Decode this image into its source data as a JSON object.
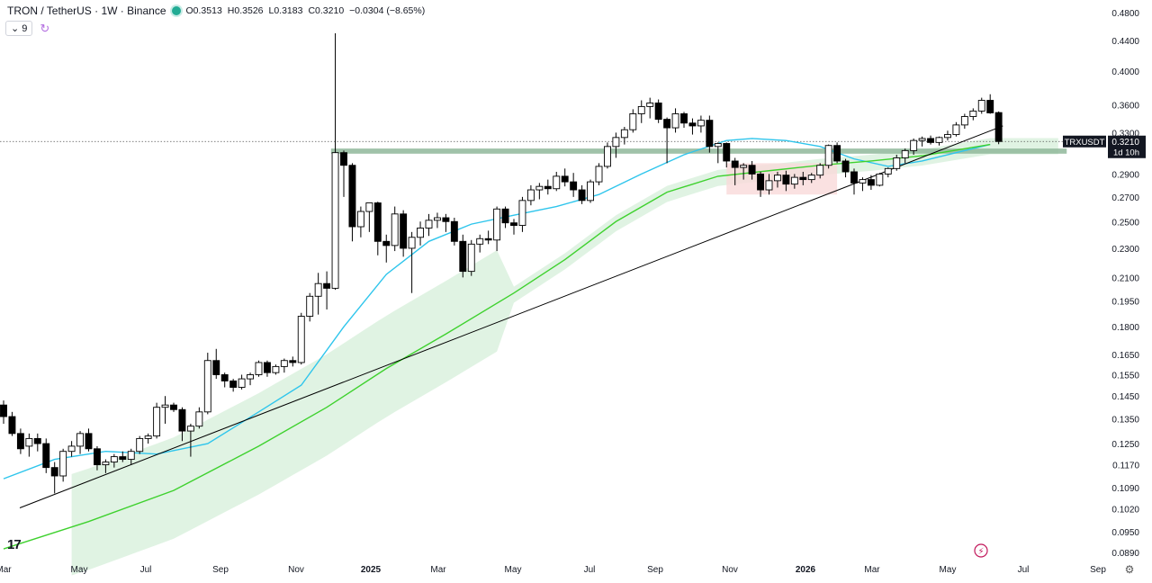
{
  "header": {
    "symbol": "TRON / TetherUS · 1W · Binance",
    "open": "O0.3513",
    "high": "H0.3526",
    "low": "L0.3183",
    "close": "C0.3210",
    "change": "−0.0304 (−8.65%)",
    "indicator_count": "9"
  },
  "price_label": {
    "ticker": "TRXUSDT",
    "price": "0.3210",
    "countdown": "1d 10h"
  },
  "logo_text": "17",
  "colors": {
    "up_fill": "#ffffff",
    "down_fill": "#000000",
    "ema_short": "#2ec5ec",
    "ema_long": "#3ed12e",
    "cloud_green": "#d6efd9",
    "cloud_red": "#f9dada",
    "zone": "#8fb79a",
    "trendline": "#000000"
  },
  "chart_data": {
    "type": "candlestick",
    "y_scale": "log",
    "y_ticks": [
      "0.4800",
      "0.4400",
      "0.4000",
      "0.3600",
      "0.3300",
      "0.2900",
      "0.2700",
      "0.2500",
      "0.2300",
      "0.2100",
      "0.1950",
      "0.1800",
      "0.1650",
      "0.1550",
      "0.1450",
      "0.1350",
      "0.1250",
      "0.1170",
      "0.1090",
      "0.1020",
      "0.0950",
      "0.0890"
    ],
    "x_ticks": [
      "Mar",
      "May",
      "Jul",
      "Sep",
      "Nov",
      "2025",
      "Mar",
      "May",
      "Jul",
      "Sep",
      "Nov",
      "2026",
      "Mar",
      "May",
      "Jul",
      "Sep"
    ],
    "x_ticks_bold": [
      "2025",
      "2026"
    ],
    "candles": [
      [
        0.141,
        0.143,
        0.133,
        0.136
      ],
      [
        0.136,
        0.138,
        0.128,
        0.129
      ],
      [
        0.129,
        0.131,
        0.121,
        0.123
      ],
      [
        0.124,
        0.129,
        0.12,
        0.127
      ],
      [
        0.127,
        0.129,
        0.122,
        0.125
      ],
      [
        0.125,
        0.127,
        0.114,
        0.116
      ],
      [
        0.116,
        0.118,
        0.107,
        0.113
      ],
      [
        0.113,
        0.123,
        0.111,
        0.122
      ],
      [
        0.122,
        0.126,
        0.12,
        0.124
      ],
      [
        0.124,
        0.13,
        0.121,
        0.129
      ],
      [
        0.129,
        0.131,
        0.122,
        0.123
      ],
      [
        0.123,
        0.124,
        0.115,
        0.117
      ],
      [
        0.117,
        0.119,
        0.114,
        0.118
      ],
      [
        0.118,
        0.121,
        0.116,
        0.12
      ],
      [
        0.12,
        0.122,
        0.118,
        0.119
      ],
      [
        0.119,
        0.123,
        0.117,
        0.122
      ],
      [
        0.122,
        0.128,
        0.121,
        0.127
      ],
      [
        0.127,
        0.129,
        0.125,
        0.128
      ],
      [
        0.128,
        0.142,
        0.127,
        0.14
      ],
      [
        0.14,
        0.145,
        0.133,
        0.141
      ],
      [
        0.141,
        0.142,
        0.138,
        0.139
      ],
      [
        0.139,
        0.14,
        0.126,
        0.13
      ],
      [
        0.13,
        0.133,
        0.12,
        0.132
      ],
      [
        0.132,
        0.14,
        0.131,
        0.138
      ],
      [
        0.138,
        0.166,
        0.137,
        0.162
      ],
      [
        0.162,
        0.168,
        0.153,
        0.155
      ],
      [
        0.155,
        0.156,
        0.149,
        0.152
      ],
      [
        0.152,
        0.153,
        0.147,
        0.149
      ],
      [
        0.149,
        0.155,
        0.148,
        0.153
      ],
      [
        0.153,
        0.156,
        0.15,
        0.155
      ],
      [
        0.155,
        0.162,
        0.154,
        0.161
      ],
      [
        0.161,
        0.162,
        0.154,
        0.156
      ],
      [
        0.156,
        0.16,
        0.155,
        0.159
      ],
      [
        0.159,
        0.163,
        0.156,
        0.162
      ],
      [
        0.162,
        0.164,
        0.159,
        0.161
      ],
      [
        0.161,
        0.188,
        0.16,
        0.186
      ],
      [
        0.186,
        0.2,
        0.183,
        0.198
      ],
      [
        0.198,
        0.213,
        0.187,
        0.206
      ],
      [
        0.206,
        0.214,
        0.19,
        0.203
      ],
      [
        0.203,
        0.45,
        0.202,
        0.31
      ],
      [
        0.31,
        0.312,
        0.27,
        0.298
      ],
      [
        0.298,
        0.3,
        0.235,
        0.246
      ],
      [
        0.246,
        0.262,
        0.238,
        0.258
      ],
      [
        0.258,
        0.263,
        0.242,
        0.265
      ],
      [
        0.265,
        0.266,
        0.225,
        0.235
      ],
      [
        0.235,
        0.24,
        0.22,
        0.232
      ],
      [
        0.232,
        0.262,
        0.228,
        0.256
      ],
      [
        0.256,
        0.259,
        0.224,
        0.23
      ],
      [
        0.23,
        0.242,
        0.2,
        0.238
      ],
      [
        0.238,
        0.25,
        0.232,
        0.245
      ],
      [
        0.245,
        0.256,
        0.239,
        0.251
      ],
      [
        0.251,
        0.257,
        0.245,
        0.253
      ],
      [
        0.253,
        0.256,
        0.242,
        0.25
      ],
      [
        0.25,
        0.253,
        0.232,
        0.235
      ],
      [
        0.235,
        0.24,
        0.21,
        0.214
      ],
      [
        0.214,
        0.236,
        0.211,
        0.233
      ],
      [
        0.233,
        0.24,
        0.227,
        0.237
      ],
      [
        0.237,
        0.243,
        0.233,
        0.236
      ],
      [
        0.236,
        0.262,
        0.228,
        0.26
      ],
      [
        0.26,
        0.262,
        0.245,
        0.249
      ],
      [
        0.249,
        0.252,
        0.24,
        0.247
      ],
      [
        0.247,
        0.27,
        0.242,
        0.267
      ],
      [
        0.267,
        0.28,
        0.263,
        0.276
      ],
      [
        0.276,
        0.282,
        0.268,
        0.279
      ],
      [
        0.279,
        0.285,
        0.272,
        0.277
      ],
      [
        0.277,
        0.292,
        0.275,
        0.288
      ],
      [
        0.288,
        0.295,
        0.279,
        0.283
      ],
      [
        0.283,
        0.291,
        0.27,
        0.276
      ],
      [
        0.276,
        0.28,
        0.264,
        0.267
      ],
      [
        0.267,
        0.285,
        0.265,
        0.283
      ],
      [
        0.283,
        0.3,
        0.28,
        0.297
      ],
      [
        0.297,
        0.32,
        0.295,
        0.316
      ],
      [
        0.316,
        0.33,
        0.305,
        0.325
      ],
      [
        0.325,
        0.336,
        0.318,
        0.333
      ],
      [
        0.333,
        0.355,
        0.33,
        0.35
      ],
      [
        0.35,
        0.365,
        0.34,
        0.358
      ],
      [
        0.358,
        0.368,
        0.345,
        0.362
      ],
      [
        0.362,
        0.366,
        0.34,
        0.344
      ],
      [
        0.344,
        0.346,
        0.3,
        0.335
      ],
      [
        0.335,
        0.356,
        0.33,
        0.35
      ],
      [
        0.35,
        0.352,
        0.335,
        0.34
      ],
      [
        0.34,
        0.345,
        0.328,
        0.337
      ],
      [
        0.337,
        0.348,
        0.33,
        0.343
      ],
      [
        0.343,
        0.348,
        0.31,
        0.316
      ],
      [
        0.316,
        0.32,
        0.3,
        0.319
      ],
      [
        0.319,
        0.32,
        0.296,
        0.302
      ],
      [
        0.302,
        0.305,
        0.28,
        0.296
      ],
      [
        0.296,
        0.3,
        0.285,
        0.298
      ],
      [
        0.298,
        0.302,
        0.285,
        0.29
      ],
      [
        0.29,
        0.292,
        0.27,
        0.276
      ],
      [
        0.276,
        0.29,
        0.272,
        0.284
      ],
      [
        0.284,
        0.292,
        0.278,
        0.289
      ],
      [
        0.289,
        0.293,
        0.275,
        0.281
      ],
      [
        0.281,
        0.29,
        0.277,
        0.287
      ],
      [
        0.287,
        0.292,
        0.28,
        0.285
      ],
      [
        0.285,
        0.291,
        0.282,
        0.289
      ],
      [
        0.289,
        0.3,
        0.286,
        0.298
      ],
      [
        0.298,
        0.318,
        0.295,
        0.317
      ],
      [
        0.317,
        0.32,
        0.3,
        0.302
      ],
      [
        0.302,
        0.304,
        0.287,
        0.292
      ],
      [
        0.292,
        0.295,
        0.272,
        0.282
      ],
      [
        0.282,
        0.287,
        0.275,
        0.285
      ],
      [
        0.285,
        0.289,
        0.276,
        0.28
      ],
      [
        0.28,
        0.291,
        0.279,
        0.29
      ],
      [
        0.29,
        0.296,
        0.287,
        0.295
      ],
      [
        0.295,
        0.308,
        0.293,
        0.305
      ],
      [
        0.305,
        0.314,
        0.3,
        0.312
      ],
      [
        0.312,
        0.324,
        0.308,
        0.322
      ],
      [
        0.322,
        0.326,
        0.316,
        0.324
      ],
      [
        0.324,
        0.327,
        0.318,
        0.32
      ],
      [
        0.32,
        0.326,
        0.317,
        0.325
      ],
      [
        0.325,
        0.332,
        0.322,
        0.328
      ],
      [
        0.328,
        0.341,
        0.326,
        0.338
      ],
      [
        0.338,
        0.35,
        0.334,
        0.347
      ],
      [
        0.347,
        0.356,
        0.343,
        0.353
      ],
      [
        0.353,
        0.368,
        0.35,
        0.365
      ],
      [
        0.365,
        0.372,
        0.35,
        0.351
      ],
      [
        0.3513,
        0.3526,
        0.3183,
        0.321
      ]
    ],
    "ema_short_points": [
      [
        0,
        0.112
      ],
      [
        6,
        0.119
      ],
      [
        12,
        0.122
      ],
      [
        18,
        0.121
      ],
      [
        24,
        0.125
      ],
      [
        30,
        0.138
      ],
      [
        35,
        0.15
      ],
      [
        40,
        0.18
      ],
      [
        45,
        0.212
      ],
      [
        50,
        0.235
      ],
      [
        55,
        0.248
      ],
      [
        60,
        0.255
      ],
      [
        65,
        0.262
      ],
      [
        70,
        0.272
      ],
      [
        75,
        0.29
      ],
      [
        80,
        0.308
      ],
      [
        85,
        0.322
      ],
      [
        88,
        0.324
      ],
      [
        92,
        0.322
      ],
      [
        96,
        0.316
      ],
      [
        100,
        0.304
      ],
      [
        104,
        0.297
      ],
      [
        108,
        0.302
      ],
      [
        112,
        0.31
      ],
      [
        116,
        0.318
      ]
    ],
    "ema_long_points": [
      [
        0,
        0.09
      ],
      [
        10,
        0.098
      ],
      [
        20,
        0.108
      ],
      [
        30,
        0.124
      ],
      [
        38,
        0.14
      ],
      [
        45,
        0.158
      ],
      [
        52,
        0.176
      ],
      [
        60,
        0.2
      ],
      [
        66,
        0.222
      ],
      [
        72,
        0.25
      ],
      [
        78,
        0.274
      ],
      [
        84,
        0.288
      ],
      [
        90,
        0.293
      ],
      [
        96,
        0.298
      ],
      [
        102,
        0.302
      ],
      [
        108,
        0.307
      ],
      [
        116,
        0.318
      ]
    ],
    "trendline": {
      "from": [
        0,
        0.1
      ],
      "to": [
        117.5,
        0.337
      ]
    },
    "support_zone": {
      "from_index": 38.5,
      "to_index": 125,
      "low": 0.309,
      "high": 0.314
    },
    "current_price": 0.321
  }
}
